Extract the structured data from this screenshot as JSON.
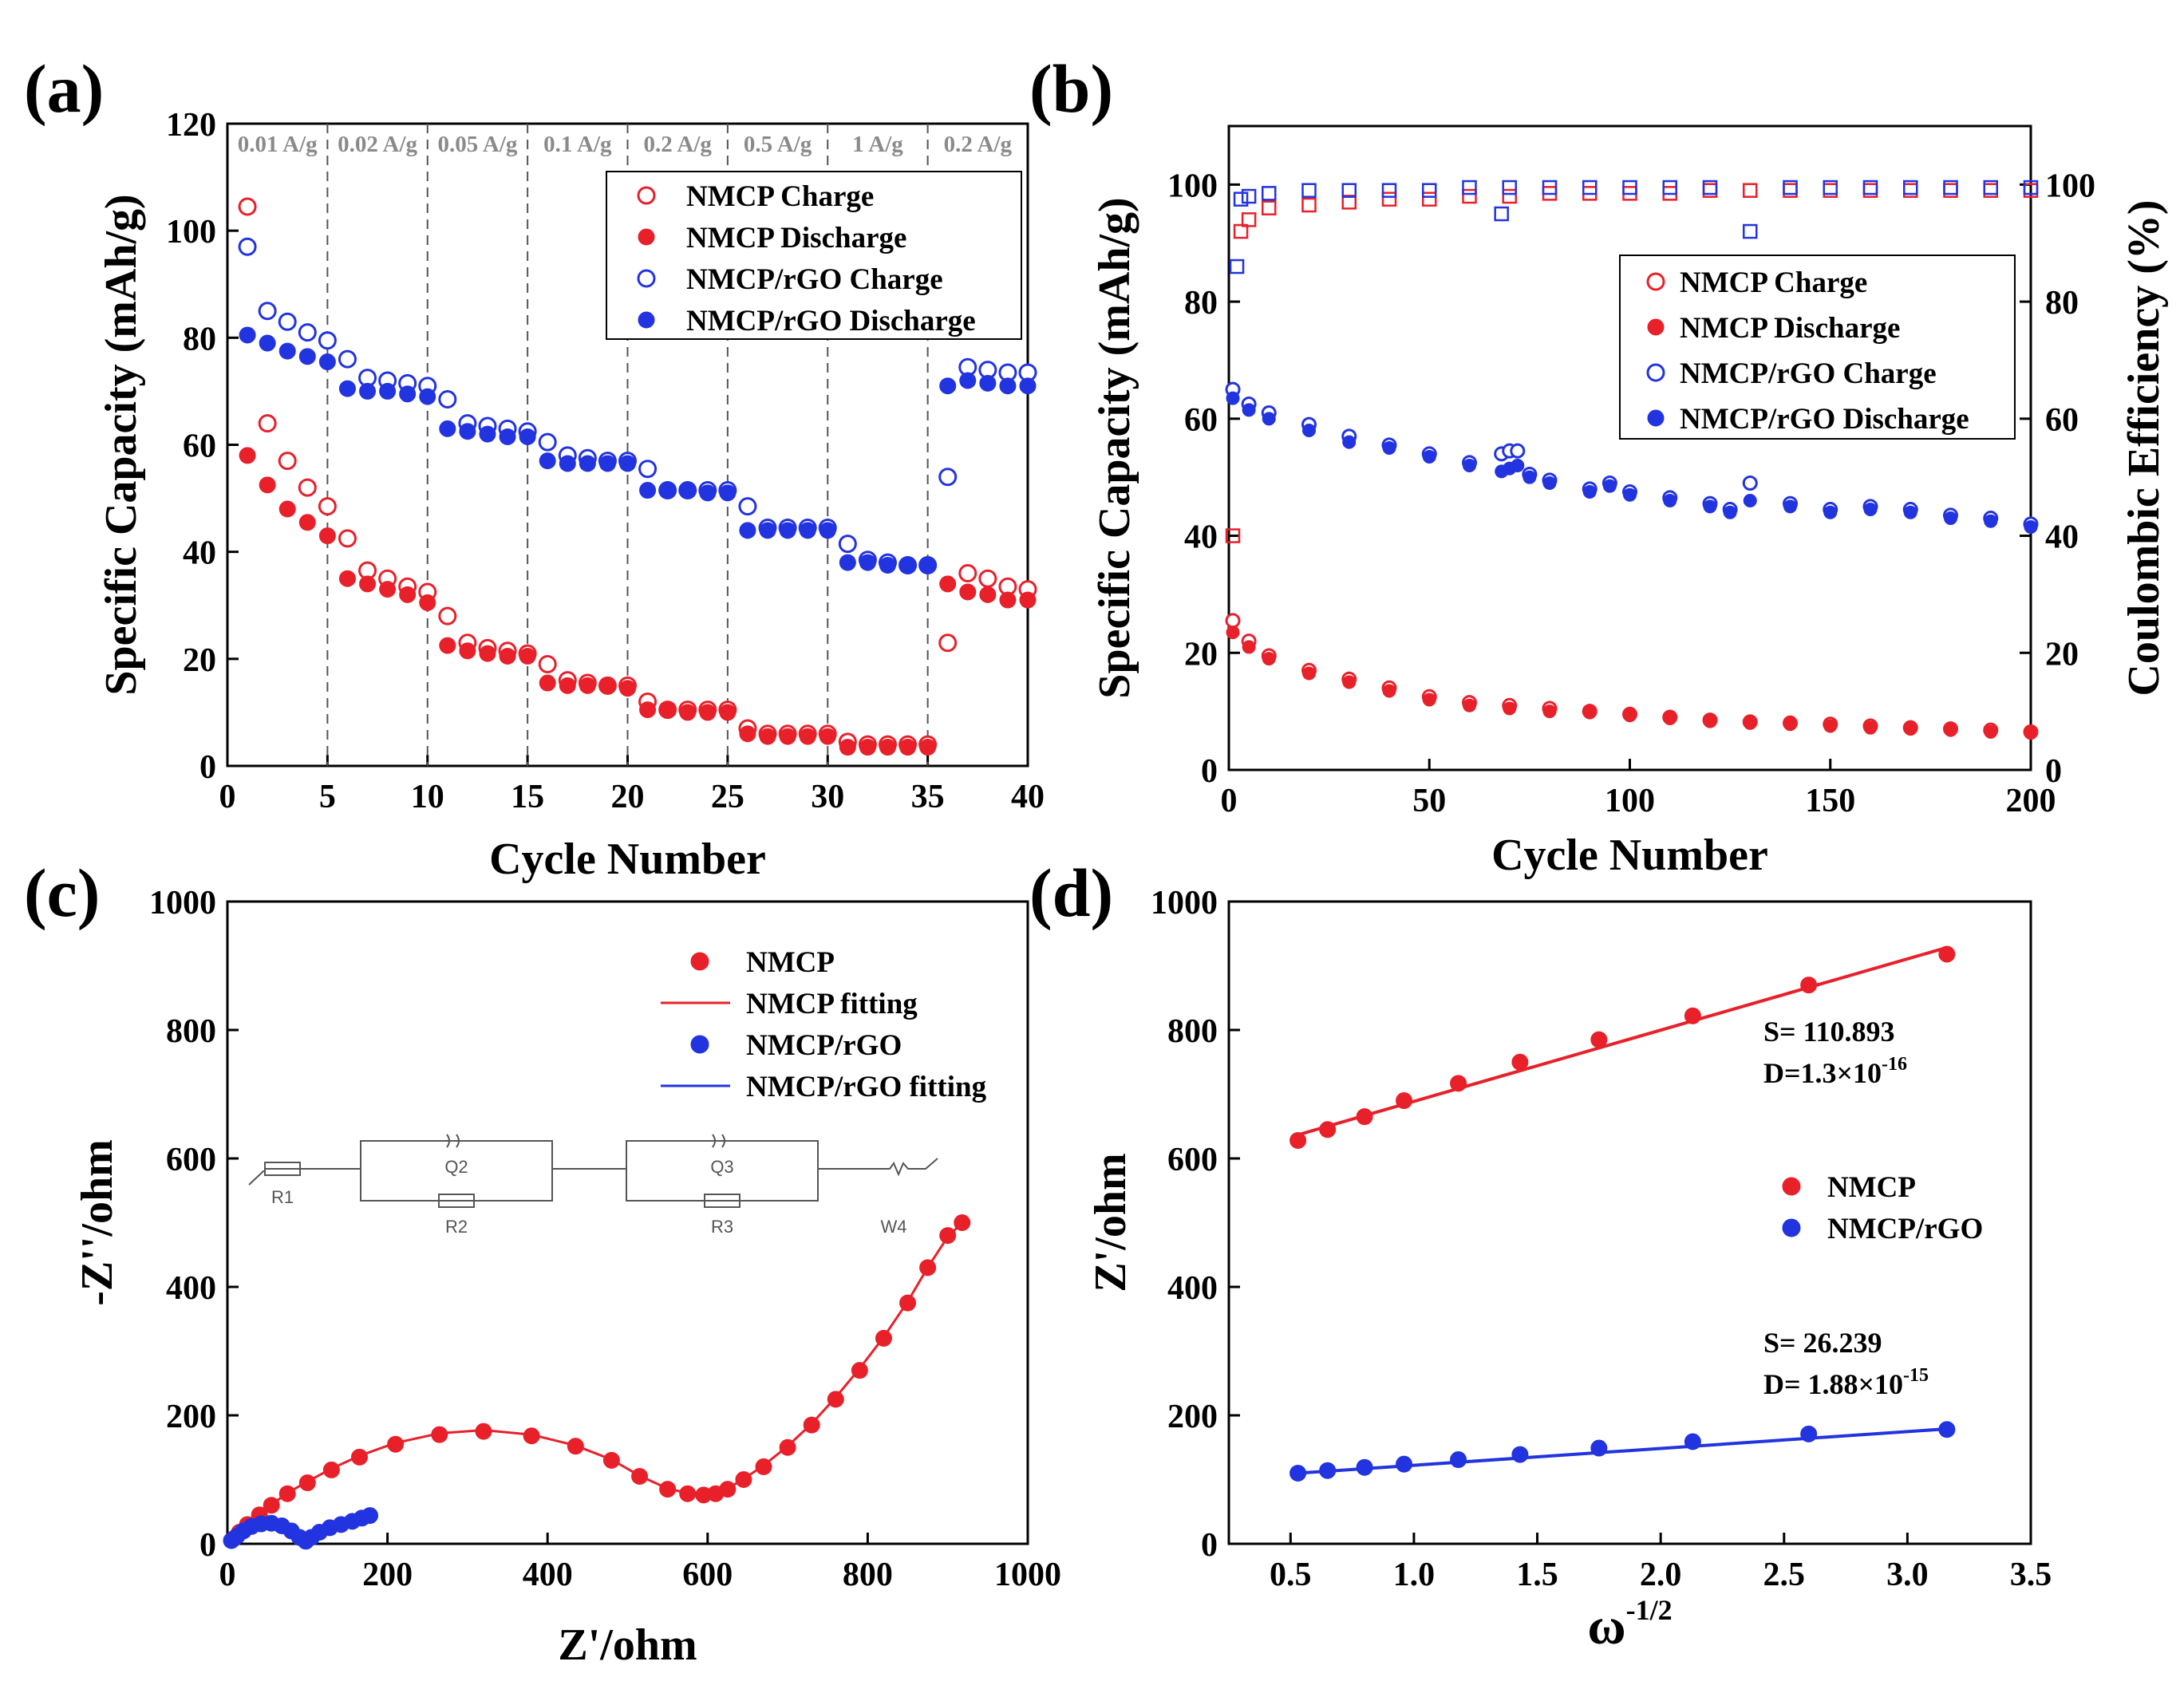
{
  "colors": {
    "red": "#e8202a",
    "blue": "#2233e0",
    "axis": "#000000",
    "rate_text": "#8a8a8a"
  },
  "chart_data": [
    {
      "panel": "a",
      "panel_label": "(a)",
      "type": "scatter",
      "xlabel": "Cycle Number",
      "ylabel": "Specific Capacity (mAh/g)",
      "xlim": [
        0,
        40
      ],
      "ylim": [
        0,
        120
      ],
      "xticks": [
        0,
        5,
        10,
        15,
        20,
        25,
        30,
        35,
        40
      ],
      "yticks": [
        0,
        20,
        40,
        60,
        80,
        100,
        120
      ],
      "rate_boundaries": [
        5,
        10,
        15,
        20,
        25,
        30,
        35
      ],
      "rate_labels": [
        "0.01 A/g",
        "0.02 A/g",
        "0.05 A/g",
        "0.1 A/g",
        "0.2 A/g",
        "0.5 A/g",
        "1 A/g",
        "0.2 A/g"
      ],
      "legend_position": "top-right",
      "x": [
        1,
        2,
        3,
        4,
        5,
        6,
        7,
        8,
        9,
        10,
        11,
        12,
        13,
        14,
        15,
        16,
        17,
        18,
        19,
        20,
        21,
        22,
        23,
        24,
        25,
        26,
        27,
        28,
        29,
        30,
        31,
        32,
        33,
        34,
        35,
        36,
        37,
        38,
        39,
        40
      ],
      "series": [
        {
          "name": "NMCP Charge",
          "marker": "open-circle",
          "color": "red",
          "values": [
            104.5,
            64,
            57,
            52,
            48.5,
            42.5,
            36.5,
            35,
            33.5,
            32.5,
            28,
            23,
            22,
            21.5,
            21,
            19,
            16,
            15.5,
            15,
            15,
            12,
            10.5,
            10.5,
            10.5,
            10.5,
            7,
            6,
            6,
            6,
            6,
            4.5,
            4,
            4,
            4,
            4,
            23,
            36,
            35,
            33.5,
            33
          ]
        },
        {
          "name": "NMCP Discharge",
          "marker": "filled-circle",
          "color": "red",
          "values": [
            58,
            52.5,
            48,
            45.5,
            43,
            35,
            34,
            33,
            32,
            30.5,
            22.5,
            21.5,
            21,
            20.5,
            20.5,
            15.5,
            15,
            15,
            15,
            14.5,
            10.5,
            10.5,
            10,
            10,
            10,
            6,
            5.5,
            5.5,
            5.5,
            5.5,
            3.5,
            3.5,
            3.5,
            3.5,
            3.5,
            34,
            32.5,
            32,
            31,
            31
          ]
        },
        {
          "name": "NMCP/rGO Charge",
          "marker": "open-circle",
          "color": "blue",
          "values": [
            97,
            85,
            83,
            81,
            79.5,
            76,
            72.5,
            72,
            71.5,
            71,
            68.5,
            64,
            63.5,
            63,
            62.5,
            60.5,
            58,
            57.5,
            57,
            57,
            55.5,
            51.5,
            51.5,
            51.5,
            51.5,
            48.5,
            44.5,
            44.5,
            44.5,
            44.5,
            41.5,
            38.5,
            38,
            37.5,
            37.5,
            54,
            74.5,
            74,
            73.5,
            73.5
          ]
        },
        {
          "name": "NMCP/rGO Discharge",
          "marker": "filled-circle",
          "color": "blue",
          "values": [
            80.5,
            79,
            77.5,
            76.5,
            75.5,
            70.5,
            70,
            70,
            69.5,
            69,
            63,
            62.5,
            62,
            61.5,
            61.5,
            57,
            56.5,
            56.5,
            56.5,
            56.5,
            51.5,
            51.5,
            51.5,
            51,
            51,
            44,
            44,
            44,
            44,
            44,
            38,
            38,
            37.5,
            37.5,
            37.5,
            71,
            72,
            71.5,
            71,
            71
          ]
        }
      ]
    },
    {
      "panel": "b",
      "panel_label": "(b)",
      "type": "scatter",
      "xlabel": "Cycle Number",
      "ylabel": "Specific Capacity (mAh/g)",
      "y2label": "Coulombic Efficiency (%)",
      "xlim": [
        0,
        200
      ],
      "ylim": [
        0,
        110
      ],
      "y2lim": [
        0,
        110
      ],
      "xticks": [
        0,
        50,
        100,
        150,
        200
      ],
      "yticks": [
        0,
        20,
        40,
        60,
        80,
        100
      ],
      "y2ticks": [
        0,
        20,
        40,
        60,
        80,
        100
      ],
      "legend_position": "middle-right",
      "series": [
        {
          "name": "NMCP Charge",
          "marker": "open-circle",
          "color": "red",
          "x": [
            1,
            5,
            10,
            20,
            30,
            40,
            50,
            60,
            70,
            80,
            90,
            100,
            110,
            120,
            130,
            140,
            150,
            160,
            170,
            180,
            190,
            200
          ],
          "values": [
            25.5,
            22,
            19.5,
            17,
            15.5,
            14,
            12.5,
            11.5,
            11,
            10.5,
            10,
            9.5,
            9,
            8.5,
            8.2,
            8,
            7.8,
            7.5,
            7.2,
            7,
            6.8,
            6.5
          ]
        },
        {
          "name": "NMCP Discharge",
          "marker": "filled-circle",
          "color": "red",
          "x": [
            1,
            5,
            10,
            20,
            30,
            40,
            50,
            60,
            70,
            80,
            90,
            100,
            110,
            120,
            130,
            140,
            150,
            160,
            170,
            180,
            190,
            200
          ],
          "values": [
            23.5,
            21,
            19,
            16.5,
            15,
            13.5,
            12,
            11,
            10.5,
            10,
            9.8,
            9.3,
            8.8,
            8.3,
            8,
            7.8,
            7.5,
            7.2,
            7,
            6.8,
            6.5,
            6.3
          ]
        },
        {
          "name": "NMCP/rGO Charge",
          "marker": "open-circle",
          "color": "blue",
          "x": [
            1,
            5,
            10,
            20,
            30,
            40,
            50,
            60,
            68,
            70,
            72,
            75,
            80,
            90,
            95,
            100,
            110,
            120,
            125,
            130,
            140,
            150,
            160,
            170,
            180,
            190,
            200
          ],
          "values": [
            65,
            62.5,
            61,
            59,
            57,
            55.5,
            54,
            52.5,
            54,
            54.5,
            54.5,
            50.5,
            49.5,
            48,
            49,
            47.5,
            46.5,
            45.5,
            44.5,
            49,
            45.5,
            44.5,
            45,
            44.5,
            43.5,
            43,
            42
          ]
        },
        {
          "name": "NMCP/rGO Discharge",
          "marker": "filled-circle",
          "color": "blue",
          "x": [
            1,
            5,
            10,
            20,
            30,
            40,
            50,
            60,
            68,
            70,
            72,
            75,
            80,
            90,
            95,
            100,
            110,
            120,
            125,
            130,
            140,
            150,
            160,
            170,
            180,
            190,
            200
          ],
          "values": [
            63.5,
            61.5,
            60,
            58,
            56,
            55,
            53.5,
            52,
            51,
            51.5,
            52,
            50,
            49,
            47.5,
            48.5,
            47,
            46,
            45,
            44,
            46,
            45,
            44,
            44.5,
            44,
            43,
            42.5,
            41.5
          ]
        },
        {
          "name": "NMCP Coulombic Efficiency",
          "marker": "open-square",
          "color": "red",
          "axis": "right",
          "x": [
            1,
            3,
            5,
            10,
            20,
            30,
            40,
            50,
            60,
            70,
            80,
            90,
            100,
            110,
            120,
            130,
            140,
            150,
            160,
            170,
            180,
            190,
            200
          ],
          "values": [
            40,
            92,
            94,
            96,
            96.5,
            97,
            97.5,
            97.5,
            98,
            98,
            98.5,
            98.5,
            98.5,
            98.5,
            99,
            99,
            99,
            99,
            99,
            99,
            99,
            99,
            99
          ]
        },
        {
          "name": "NMCP/rGO Coulombic Efficiency",
          "marker": "open-square",
          "color": "blue",
          "axis": "right",
          "x": [
            2,
            3,
            5,
            10,
            20,
            30,
            40,
            50,
            60,
            68,
            70,
            80,
            90,
            100,
            110,
            120,
            130,
            140,
            150,
            160,
            170,
            180,
            190,
            200
          ],
          "values": [
            86,
            97.5,
            98,
            98.5,
            99,
            99,
            99,
            99,
            99.5,
            95,
            99.5,
            99.5,
            99.5,
            99.5,
            99.5,
            99.5,
            92,
            99.5,
            99.5,
            99.5,
            99.5,
            99.5,
            99.5,
            99.5
          ]
        }
      ],
      "legend_entries": [
        "NMCP Charge",
        "NMCP Discharge",
        "NMCP/rGO Charge",
        "NMCP/rGO Discharge"
      ]
    },
    {
      "panel": "c",
      "panel_label": "(c)",
      "type": "scatter",
      "xlabel": "Z'/ohm",
      "ylabel": "-Z''/ohm",
      "xlim": [
        0,
        1000
      ],
      "ylim": [
        0,
        1000
      ],
      "xticks": [
        0,
        200,
        400,
        600,
        800,
        1000
      ],
      "yticks": [
        0,
        200,
        400,
        600,
        800,
        1000
      ],
      "legend_position": "top-right",
      "series": [
        {
          "name": "NMCP",
          "marker": "filled-circle",
          "color": "red",
          "x": [
            8,
            15,
            25,
            40,
            55,
            75,
            100,
            130,
            165,
            210,
            265,
            320,
            380,
            435,
            480,
            515,
            550,
            575,
            595,
            610,
            625,
            645,
            670,
            700,
            730,
            760,
            790,
            820,
            850,
            875,
            900,
            918
          ],
          "values": [
            8,
            18,
            30,
            45,
            60,
            78,
            95,
            115,
            135,
            155,
            170,
            175,
            168,
            152,
            130,
            105,
            85,
            78,
            76,
            78,
            85,
            100,
            120,
            150,
            185,
            225,
            270,
            320,
            375,
            430,
            480,
            500
          ]
        },
        {
          "name": "NMCP fitting",
          "marker": "line",
          "color": "red",
          "x": [
            0,
            8,
            15,
            25,
            40,
            55,
            75,
            100,
            130,
            165,
            210,
            265,
            320,
            380,
            435,
            480,
            515,
            550,
            575,
            595,
            610,
            625,
            645,
            670,
            700,
            730,
            760,
            790,
            820,
            850,
            875,
            900,
            918
          ],
          "values": [
            0,
            9,
            19,
            31,
            46,
            61,
            79,
            97,
            117,
            137,
            157,
            172,
            177,
            170,
            153,
            131,
            106,
            86,
            79,
            77,
            79,
            86,
            101,
            122,
            152,
            187,
            228,
            273,
            322,
            377,
            430,
            478,
            500
          ]
        },
        {
          "name": "NMCP/rGO",
          "marker": "filled-circle",
          "color": "blue",
          "x": [
            5,
            12,
            20,
            30,
            42,
            55,
            68,
            80,
            90,
            98,
            105,
            115,
            128,
            142,
            156,
            168,
            178
          ],
          "values": [
            5,
            12,
            20,
            27,
            31,
            32,
            28,
            20,
            10,
            4,
            10,
            18,
            25,
            30,
            35,
            40,
            44
          ]
        },
        {
          "name": "NMCP/rGO fitting",
          "marker": "line",
          "color": "blue",
          "x": [
            0,
            5,
            12,
            20,
            30,
            42,
            55,
            68,
            80,
            90,
            98,
            105,
            115,
            128,
            142,
            156,
            168,
            178
          ],
          "values": [
            0,
            5,
            12,
            20,
            27,
            31,
            32,
            28,
            20,
            10,
            4,
            10,
            18,
            25,
            30,
            35,
            40,
            44
          ]
        }
      ],
      "inset_circuit": {
        "labels": [
          "R1",
          "Q2",
          "R2",
          "Q3",
          "R3",
          "W4"
        ]
      }
    },
    {
      "panel": "d",
      "panel_label": "(d)",
      "type": "scatter",
      "xlabel": "ω",
      "xlabel_superscript": "-1/2",
      "ylabel": "Z'/ohm",
      "xlim": [
        0.25,
        3.5
      ],
      "ylim": [
        0,
        1000
      ],
      "xticks": [
        0.5,
        1.0,
        1.5,
        2.0,
        2.5,
        3.0,
        3.5
      ],
      "xtick_labels": [
        "0.5",
        "1.0",
        "1.5",
        "2.0",
        "2.5",
        "3.0",
        "3.5"
      ],
      "yticks": [
        0,
        200,
        400,
        600,
        800,
        1000
      ],
      "legend_position": "center-right",
      "series": [
        {
          "name": "NMCP",
          "marker": "filled-circle",
          "color": "red",
          "x": [
            0.53,
            0.65,
            0.8,
            0.96,
            1.18,
            1.43,
            1.75,
            2.13,
            2.6,
            3.16
          ],
          "values": [
            628,
            645,
            665,
            690,
            717,
            750,
            785,
            822,
            870,
            918
          ],
          "fit": {
            "slope": 110.893,
            "intercept": 578,
            "x_range": [
              0.53,
              3.16
            ]
          },
          "annotation": {
            "slope_label": "S= 110.893",
            "diff_label": "D=1.3×10",
            "diff_exp": "-16"
          }
        },
        {
          "name": "NMCP/rGO",
          "marker": "filled-circle",
          "color": "blue",
          "x": [
            0.53,
            0.65,
            0.8,
            0.96,
            1.18,
            1.43,
            1.75,
            2.13,
            2.6,
            3.16
          ],
          "values": [
            110,
            114,
            119,
            124,
            131,
            139,
            149,
            159,
            171,
            178
          ],
          "fit": {
            "slope": 26.239,
            "intercept": 96,
            "x_range": [
              0.53,
              3.16
            ]
          },
          "annotation": {
            "slope_label": "S= 26.239",
            "diff_label": "D= 1.88×10",
            "diff_exp": "-15"
          }
        }
      ]
    }
  ]
}
